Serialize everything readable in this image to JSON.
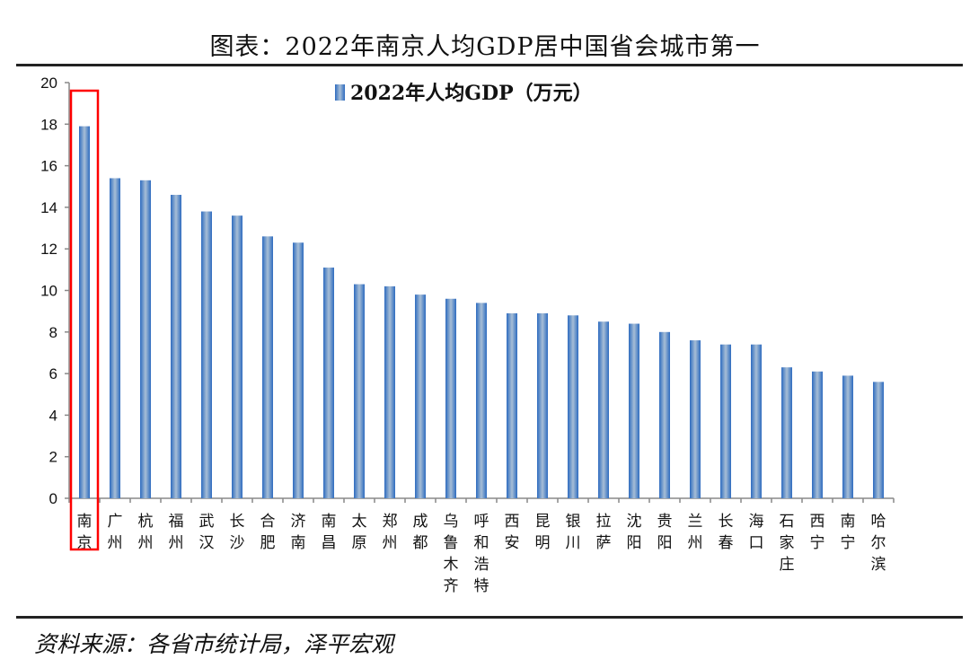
{
  "header": {
    "title": "图表：2022年南京人均GDP居中国省会城市第一"
  },
  "footer": {
    "source": "资料来源：各省市统计局，泽平宏观"
  },
  "chart_data": {
    "type": "bar",
    "title": "",
    "xlabel": "",
    "ylabel": "",
    "ylim": [
      0,
      20
    ],
    "yticks": [
      0,
      2,
      4,
      6,
      8,
      10,
      12,
      14,
      16,
      18,
      20
    ],
    "grid": false,
    "legend": "top-center",
    "highlight": "南京",
    "highlight_color": "#ff0000",
    "bar_color": "#4f81bd",
    "categories": [
      "南京",
      "广州",
      "杭州",
      "福州",
      "武汉",
      "长沙",
      "合肥",
      "济南",
      "南昌",
      "太原",
      "郑州",
      "成都",
      "乌鲁木齐",
      "呼和浩特",
      "西安",
      "昆明",
      "银川",
      "拉萨",
      "沈阳",
      "贵阳",
      "兰州",
      "长春",
      "海口",
      "石家庄",
      "西宁",
      "南宁",
      "哈尔滨"
    ],
    "series": [
      {
        "name": "2022年人均GDP（万元）",
        "values": [
          17.9,
          15.4,
          15.3,
          14.6,
          13.8,
          13.6,
          12.6,
          12.3,
          11.1,
          10.3,
          10.2,
          9.8,
          9.6,
          9.4,
          8.9,
          8.9,
          8.8,
          8.5,
          8.4,
          8.0,
          7.6,
          7.4,
          7.4,
          6.3,
          6.1,
          5.9,
          5.6
        ]
      }
    ]
  }
}
